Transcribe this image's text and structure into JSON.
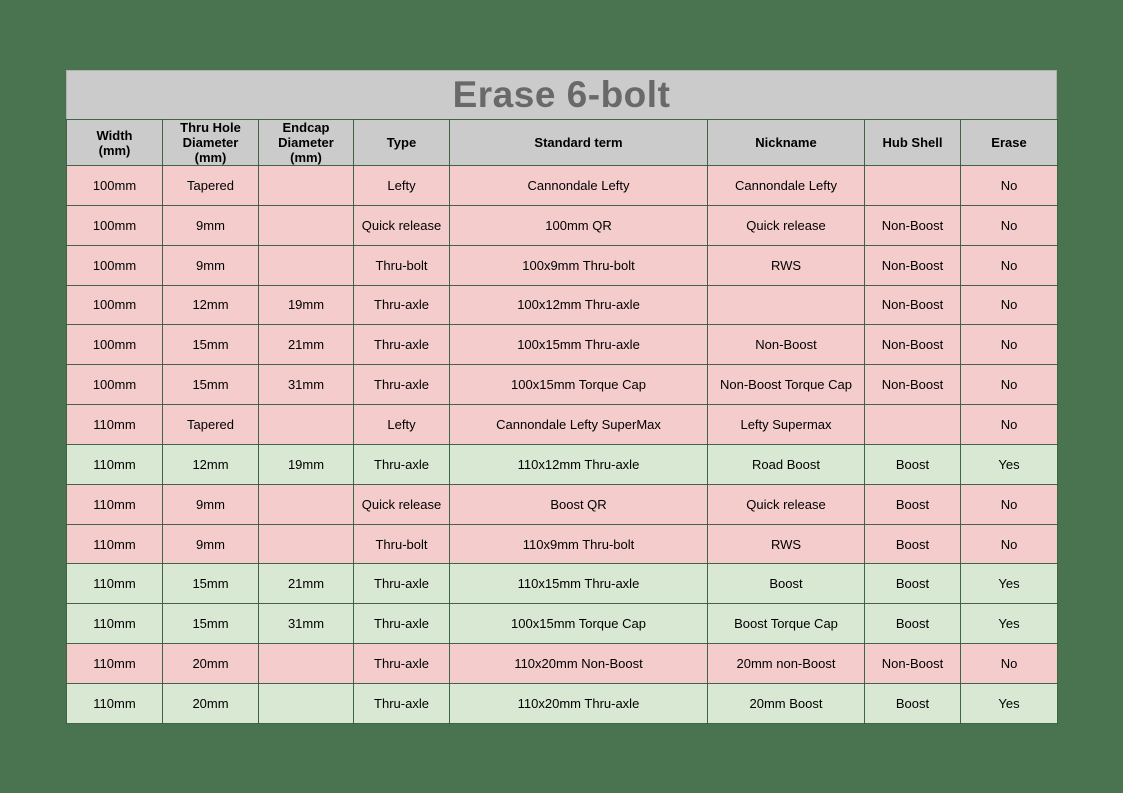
{
  "title": "Erase 6-bolt",
  "colors": {
    "page_background": "#4a7350",
    "header_background": "#cbcbcb",
    "title_text": "#696969",
    "row_erase_no": "#f4cccc",
    "row_erase_yes": "#d9e8d3",
    "cell_text": "#000000"
  },
  "chart_data": {
    "type": "table",
    "title": "Erase 6-bolt",
    "columns": [
      "Width\n(mm)",
      "Thru Hole\nDiameter\n(mm)",
      "Endcap\nDiameter\n(mm)",
      "Type",
      "Standard term",
      "Nickname",
      "Hub Shell",
      "Erase"
    ],
    "row_color_rule": "Erase = Yes -> light green row, Erase = No -> light red row",
    "rows": [
      [
        "100mm",
        "Tapered",
        "",
        "Lefty",
        "Cannondale Lefty",
        "Cannondale Lefty",
        "",
        "No"
      ],
      [
        "100mm",
        "9mm",
        "",
        "Quick release",
        "100mm QR",
        "Quick release",
        "Non-Boost",
        "No"
      ],
      [
        "100mm",
        "9mm",
        "",
        "Thru-bolt",
        "100x9mm Thru-bolt",
        "RWS",
        "Non-Boost",
        "No"
      ],
      [
        "100mm",
        "12mm",
        "19mm",
        "Thru-axle",
        "100x12mm Thru-axle",
        "",
        "Non-Boost",
        "No"
      ],
      [
        "100mm",
        "15mm",
        "21mm",
        "Thru-axle",
        "100x15mm Thru-axle",
        "Non-Boost",
        "Non-Boost",
        "No"
      ],
      [
        "100mm",
        "15mm",
        "31mm",
        "Thru-axle",
        "100x15mm Torque Cap",
        "Non-Boost Torque Cap",
        "Non-Boost",
        "No"
      ],
      [
        "110mm",
        "Tapered",
        "",
        "Lefty",
        "Cannondale Lefty SuperMax",
        "Lefty Supermax",
        "",
        "No"
      ],
      [
        "110mm",
        "12mm",
        "19mm",
        "Thru-axle",
        "110x12mm Thru-axle",
        "Road Boost",
        "Boost",
        "Yes"
      ],
      [
        "110mm",
        "9mm",
        "",
        "Quick release",
        "Boost QR",
        "Quick release",
        "Boost",
        "No"
      ],
      [
        "110mm",
        "9mm",
        "",
        "Thru-bolt",
        "110x9mm Thru-bolt",
        "RWS",
        "Boost",
        "No"
      ],
      [
        "110mm",
        "15mm",
        "21mm",
        "Thru-axle",
        "110x15mm Thru-axle",
        "Boost",
        "Boost",
        "Yes"
      ],
      [
        "110mm",
        "15mm",
        "31mm",
        "Thru-axle",
        "100x15mm Torque Cap",
        "Boost Torque Cap",
        "Boost",
        "Yes"
      ],
      [
        "110mm",
        "20mm",
        "",
        "Thru-axle",
        "110x20mm Non-Boost",
        "20mm non-Boost",
        "Non-Boost",
        "No"
      ],
      [
        "110mm",
        "20mm",
        "",
        "Thru-axle",
        "110x20mm Thru-axle",
        "20mm Boost",
        "Boost",
        "Yes"
      ]
    ]
  }
}
